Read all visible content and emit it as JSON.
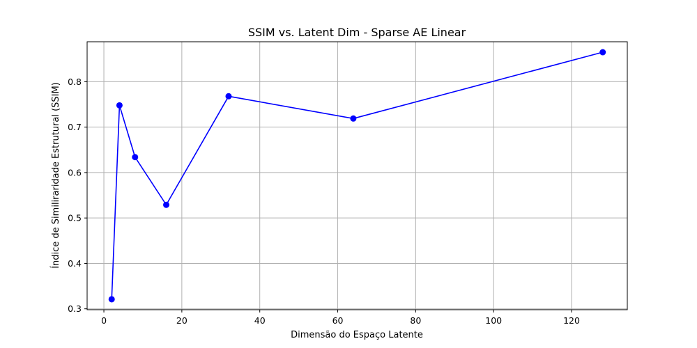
{
  "chart_data": {
    "type": "line",
    "title": "SSIM vs. Latent Dim - Sparse AE Linear",
    "xlabel": "Dimensão do Espaço Latente",
    "ylabel": "Índice de Similiraridade Estrutural (SSIM)",
    "xlim": [
      -4.3,
      134.3
    ],
    "ylim": [
      0.298,
      0.888
    ],
    "xticks": [
      0,
      20,
      40,
      60,
      80,
      100,
      120
    ],
    "yticks": [
      0.3,
      0.4,
      0.5,
      0.6,
      0.7,
      0.8
    ],
    "ytick_labels": [
      "0.3",
      "0.4",
      "0.5",
      "0.6",
      "0.7",
      "0.8"
    ],
    "grid": true,
    "series": [
      {
        "color": "#0000ff",
        "marker": "circle",
        "x": [
          2,
          4,
          8,
          16,
          32,
          64,
          128
        ],
        "y": [
          0.321,
          0.748,
          0.634,
          0.529,
          0.768,
          0.719,
          0.865
        ]
      }
    ]
  }
}
